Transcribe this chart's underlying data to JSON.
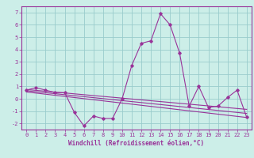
{
  "x": [
    0,
    1,
    2,
    3,
    4,
    5,
    6,
    7,
    8,
    9,
    10,
    11,
    12,
    13,
    14,
    15,
    16,
    17,
    18,
    19,
    20,
    21,
    22,
    23
  ],
  "windchill": [
    0.7,
    0.9,
    0.7,
    0.5,
    0.5,
    -1.1,
    -2.2,
    -1.4,
    -1.6,
    -1.6,
    0.0,
    2.7,
    4.5,
    4.7,
    6.9,
    6.0,
    3.7,
    -0.6,
    1.0,
    -0.7,
    -0.6,
    0.1,
    0.7,
    -1.5
  ],
  "trend_upper": [
    0.75,
    0.68,
    0.61,
    0.54,
    0.47,
    0.4,
    0.33,
    0.26,
    0.19,
    0.12,
    0.05,
    -0.02,
    -0.09,
    -0.16,
    -0.23,
    -0.3,
    -0.37,
    -0.44,
    -0.51,
    -0.58,
    -0.65,
    -0.72,
    -0.79,
    -0.86
  ],
  "trend_mid": [
    0.65,
    0.57,
    0.49,
    0.41,
    0.33,
    0.25,
    0.17,
    0.09,
    0.01,
    -0.07,
    -0.15,
    -0.23,
    -0.31,
    -0.39,
    -0.47,
    -0.55,
    -0.63,
    -0.71,
    -0.79,
    -0.87,
    -0.95,
    -1.03,
    -1.11,
    -1.19
  ],
  "trend_lower": [
    0.55,
    0.46,
    0.37,
    0.28,
    0.19,
    0.1,
    0.01,
    -0.08,
    -0.17,
    -0.26,
    -0.35,
    -0.44,
    -0.53,
    -0.62,
    -0.71,
    -0.8,
    -0.89,
    -0.98,
    -1.07,
    -1.16,
    -1.25,
    -1.34,
    -1.43,
    -1.52
  ],
  "ylim": [
    -2.5,
    7.5
  ],
  "yticks": [
    -2,
    -1,
    0,
    1,
    2,
    3,
    4,
    5,
    6,
    7
  ],
  "xlim": [
    -0.5,
    23.5
  ],
  "bg_color": "#cceee8",
  "line_color": "#993399",
  "grid_color": "#99cccc",
  "xlabel": "Windchill (Refroidissement éolien,°C)",
  "tick_fontsize": 5,
  "label_fontsize": 5.5
}
